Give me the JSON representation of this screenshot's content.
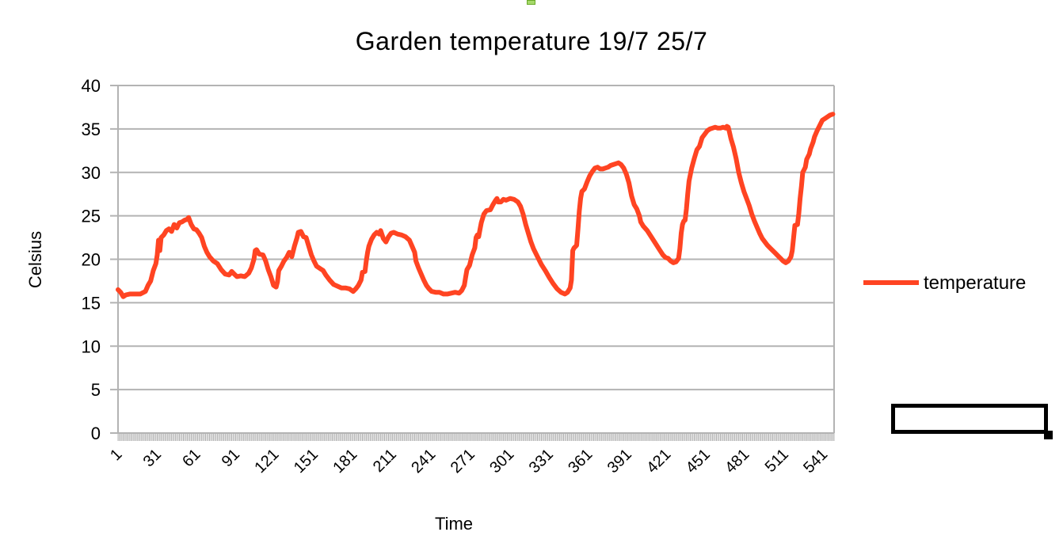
{
  "chart_data": {
    "type": "line",
    "title": "Garden temperature 19/7 25/7",
    "xlabel": "Time",
    "ylabel": "Celsius",
    "ylim": [
      0,
      40
    ],
    "yticks": [
      0,
      5,
      10,
      15,
      20,
      25,
      30,
      35,
      40
    ],
    "xlim": [
      1,
      549
    ],
    "xtick_labels": [
      "1",
      "31",
      "61",
      "91",
      "121",
      "151",
      "181",
      "211",
      "241",
      "271",
      "301",
      "331",
      "361",
      "391",
      "421",
      "451",
      "481",
      "511",
      "541"
    ],
    "grid": true,
    "legend_position": "right",
    "series": [
      {
        "name": "temperature",
        "color": "#ff4422",
        "points": [
          [
            1,
            16.5
          ],
          [
            3,
            16.2
          ],
          [
            5,
            15.7
          ],
          [
            7,
            15.9
          ],
          [
            10,
            16.0
          ],
          [
            14,
            16.0
          ],
          [
            18,
            16.0
          ],
          [
            22,
            16.3
          ],
          [
            24,
            17.0
          ],
          [
            26,
            17.5
          ],
          [
            28,
            18.7
          ],
          [
            30,
            19.5
          ],
          [
            31,
            20.5
          ],
          [
            32,
            22.2
          ],
          [
            33,
            21.0
          ],
          [
            34,
            22.5
          ],
          [
            36,
            22.8
          ],
          [
            38,
            23.3
          ],
          [
            40,
            23.5
          ],
          [
            42,
            23.2
          ],
          [
            44,
            24.0
          ],
          [
            46,
            23.6
          ],
          [
            48,
            24.2
          ],
          [
            50,
            24.3
          ],
          [
            52,
            24.5
          ],
          [
            54,
            24.6
          ],
          [
            55,
            24.8
          ],
          [
            57,
            24.0
          ],
          [
            59,
            23.5
          ],
          [
            61,
            23.4
          ],
          [
            63,
            23.0
          ],
          [
            65,
            22.5
          ],
          [
            67,
            21.5
          ],
          [
            69,
            20.8
          ],
          [
            71,
            20.3
          ],
          [
            74,
            19.8
          ],
          [
            77,
            19.5
          ],
          [
            80,
            18.8
          ],
          [
            83,
            18.3
          ],
          [
            86,
            18.2
          ],
          [
            88,
            18.6
          ],
          [
            90,
            18.3
          ],
          [
            92,
            18.0
          ],
          [
            95,
            18.1
          ],
          [
            98,
            18.0
          ],
          [
            101,
            18.4
          ],
          [
            103,
            19.0
          ],
          [
            105,
            20.0
          ],
          [
            106,
            21.0
          ],
          [
            107,
            21.1
          ],
          [
            109,
            20.6
          ],
          [
            112,
            20.5
          ],
          [
            114,
            19.8
          ],
          [
            116,
            18.8
          ],
          [
            118,
            18.0
          ],
          [
            120,
            17.0
          ],
          [
            122,
            16.8
          ],
          [
            123,
            17.4
          ],
          [
            124,
            18.7
          ],
          [
            126,
            19.2
          ],
          [
            128,
            19.8
          ],
          [
            130,
            20.2
          ],
          [
            132,
            20.8
          ],
          [
            134,
            20.3
          ],
          [
            136,
            21.5
          ],
          [
            138,
            22.5
          ],
          [
            139,
            23.1
          ],
          [
            141,
            23.2
          ],
          [
            143,
            22.6
          ],
          [
            145,
            22.5
          ],
          [
            147,
            21.5
          ],
          [
            149,
            20.5
          ],
          [
            151,
            19.8
          ],
          [
            153,
            19.2
          ],
          [
            156,
            18.9
          ],
          [
            158,
            18.7
          ],
          [
            160,
            18.2
          ],
          [
            163,
            17.6
          ],
          [
            166,
            17.1
          ],
          [
            169,
            16.9
          ],
          [
            172,
            16.7
          ],
          [
            175,
            16.7
          ],
          [
            178,
            16.6
          ],
          [
            181,
            16.3
          ],
          [
            183,
            16.6
          ],
          [
            185,
            17.0
          ],
          [
            187,
            17.6
          ],
          [
            188,
            18.5
          ],
          [
            190,
            18.6
          ],
          [
            191,
            19.8
          ],
          [
            192,
            20.8
          ],
          [
            193,
            21.5
          ],
          [
            195,
            22.3
          ],
          [
            197,
            22.8
          ],
          [
            199,
            23.1
          ],
          [
            201,
            22.9
          ],
          [
            202,
            23.3
          ],
          [
            204,
            22.4
          ],
          [
            206,
            22.0
          ],
          [
            208,
            22.6
          ],
          [
            210,
            23.0
          ],
          [
            212,
            23.1
          ],
          [
            215,
            22.9
          ],
          [
            218,
            22.8
          ],
          [
            221,
            22.6
          ],
          [
            224,
            22.2
          ],
          [
            226,
            21.5
          ],
          [
            228,
            20.8
          ],
          [
            229,
            19.8
          ],
          [
            231,
            19.0
          ],
          [
            233,
            18.3
          ],
          [
            235,
            17.6
          ],
          [
            237,
            17.0
          ],
          [
            239,
            16.6
          ],
          [
            241,
            16.3
          ],
          [
            244,
            16.2
          ],
          [
            247,
            16.2
          ],
          [
            250,
            16.0
          ],
          [
            253,
            16.0
          ],
          [
            256,
            16.1
          ],
          [
            259,
            16.2
          ],
          [
            262,
            16.1
          ],
          [
            264,
            16.4
          ],
          [
            266,
            17.0
          ],
          [
            267,
            17.9
          ],
          [
            268,
            18.8
          ],
          [
            270,
            19.3
          ],
          [
            272,
            20.5
          ],
          [
            274,
            21.3
          ],
          [
            275,
            22.5
          ],
          [
            276,
            22.8
          ],
          [
            277,
            22.6
          ],
          [
            278,
            23.4
          ],
          [
            279,
            24.2
          ],
          [
            281,
            25.2
          ],
          [
            283,
            25.6
          ],
          [
            286,
            25.7
          ],
          [
            288,
            26.3
          ],
          [
            290,
            26.8
          ],
          [
            291,
            27.0
          ],
          [
            292,
            26.6
          ],
          [
            294,
            26.6
          ],
          [
            296,
            26.9
          ],
          [
            298,
            26.8
          ],
          [
            301,
            27.0
          ],
          [
            304,
            26.9
          ],
          [
            307,
            26.6
          ],
          [
            309,
            26.1
          ],
          [
            311,
            25.2
          ],
          [
            313,
            24.0
          ],
          [
            315,
            23.0
          ],
          [
            317,
            22.0
          ],
          [
            319,
            21.2
          ],
          [
            322,
            20.3
          ],
          [
            325,
            19.4
          ],
          [
            328,
            18.7
          ],
          [
            331,
            17.9
          ],
          [
            334,
            17.2
          ],
          [
            337,
            16.6
          ],
          [
            340,
            16.2
          ],
          [
            343,
            16.0
          ],
          [
            345,
            16.2
          ],
          [
            347,
            16.7
          ],
          [
            348,
            17.6
          ],
          [
            349,
            21.0
          ],
          [
            350,
            21.3
          ],
          [
            352,
            21.6
          ],
          [
            353,
            23.5
          ],
          [
            354,
            25.5
          ],
          [
            355,
            27.0
          ],
          [
            356,
            27.8
          ],
          [
            358,
            28.1
          ],
          [
            360,
            28.9
          ],
          [
            362,
            29.6
          ],
          [
            364,
            30.1
          ],
          [
            366,
            30.5
          ],
          [
            368,
            30.6
          ],
          [
            370,
            30.4
          ],
          [
            372,
            30.4
          ],
          [
            374,
            30.5
          ],
          [
            376,
            30.6
          ],
          [
            378,
            30.8
          ],
          [
            380,
            30.9
          ],
          [
            382,
            31.0
          ],
          [
            384,
            31.1
          ],
          [
            386,
            30.9
          ],
          [
            388,
            30.5
          ],
          [
            390,
            29.8
          ],
          [
            392,
            28.8
          ],
          [
            394,
            27.3
          ],
          [
            396,
            26.3
          ],
          [
            398,
            25.8
          ],
          [
            400,
            25.0
          ],
          [
            401,
            24.3
          ],
          [
            403,
            23.8
          ],
          [
            406,
            23.3
          ],
          [
            409,
            22.6
          ],
          [
            412,
            21.9
          ],
          [
            415,
            21.2
          ],
          [
            418,
            20.5
          ],
          [
            420,
            20.2
          ],
          [
            422,
            20.1
          ],
          [
            424,
            19.8
          ],
          [
            426,
            19.6
          ],
          [
            428,
            19.7
          ],
          [
            430,
            20.1
          ],
          [
            431,
            21.2
          ],
          [
            432,
            23.0
          ],
          [
            433,
            24.0
          ],
          [
            434,
            24.4
          ],
          [
            435,
            24.5
          ],
          [
            436,
            25.8
          ],
          [
            437,
            27.5
          ],
          [
            438,
            29.0
          ],
          [
            440,
            30.5
          ],
          [
            442,
            31.6
          ],
          [
            444,
            32.6
          ],
          [
            446,
            33.0
          ],
          [
            448,
            34.0
          ],
          [
            450,
            34.4
          ],
          [
            452,
            34.8
          ],
          [
            454,
            35.0
          ],
          [
            456,
            35.1
          ],
          [
            458,
            35.2
          ],
          [
            460,
            35.1
          ],
          [
            462,
            35.1
          ],
          [
            464,
            35.2
          ],
          [
            466,
            35.1
          ],
          [
            467,
            35.3
          ],
          [
            468,
            35.2
          ],
          [
            469,
            34.6
          ],
          [
            470,
            33.9
          ],
          [
            472,
            32.9
          ],
          [
            474,
            31.6
          ],
          [
            476,
            30.0
          ],
          [
            478,
            28.8
          ],
          [
            480,
            27.8
          ],
          [
            482,
            27.0
          ],
          [
            484,
            26.2
          ],
          [
            486,
            25.2
          ],
          [
            488,
            24.4
          ],
          [
            490,
            23.7
          ],
          [
            492,
            23.0
          ],
          [
            494,
            22.4
          ],
          [
            496,
            22.0
          ],
          [
            498,
            21.6
          ],
          [
            500,
            21.3
          ],
          [
            502,
            21.0
          ],
          [
            504,
            20.7
          ],
          [
            506,
            20.4
          ],
          [
            508,
            20.1
          ],
          [
            510,
            19.8
          ],
          [
            512,
            19.6
          ],
          [
            514,
            19.8
          ],
          [
            516,
            20.3
          ],
          [
            517,
            21.0
          ],
          [
            518,
            22.5
          ],
          [
            519,
            23.9
          ],
          [
            521,
            24.0
          ],
          [
            522,
            25.3
          ],
          [
            523,
            27.0
          ],
          [
            524,
            28.4
          ],
          [
            525,
            30.0
          ],
          [
            526,
            30.3
          ],
          [
            527,
            30.6
          ],
          [
            528,
            31.5
          ],
          [
            530,
            32.1
          ],
          [
            531,
            32.7
          ],
          [
            533,
            33.5
          ],
          [
            534,
            34.1
          ],
          [
            536,
            34.8
          ],
          [
            538,
            35.4
          ],
          [
            540,
            36.0
          ],
          [
            542,
            36.2
          ],
          [
            544,
            36.4
          ],
          [
            546,
            36.6
          ],
          [
            548,
            36.7
          ]
        ]
      }
    ]
  },
  "legend": {
    "items": [
      {
        "label": "temperature",
        "color": "#ff4422"
      }
    ]
  },
  "colors": {
    "series": "#ff4422",
    "grid": "#b3b3b3",
    "axis": "#b3b3b3",
    "handle_fill": "#a6d96a"
  }
}
